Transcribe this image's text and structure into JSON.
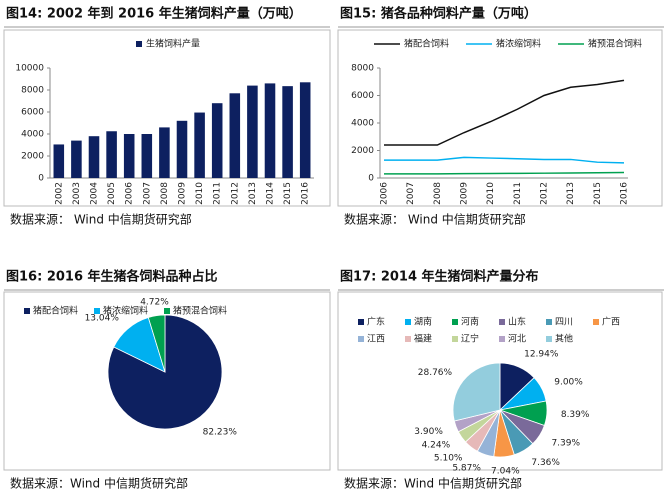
{
  "chart_data": [
    {
      "type": "bar",
      "title": "图14:  2002 年到 2016 年生猪饲料产量（万吨）",
      "source": "数据来源：  Wind  中信期货研究部",
      "categories": [
        "2002",
        "2003",
        "2004",
        "2005",
        "2006",
        "2007",
        "2008",
        "2009",
        "2010",
        "2011",
        "2012",
        "2013",
        "2014",
        "2015",
        "2016"
      ],
      "series": [
        {
          "name": "生猪饲料产量",
          "color": "#0d2060",
          "values": [
            3050,
            3400,
            3800,
            4250,
            4000,
            4000,
            4600,
            5200,
            5950,
            6800,
            7700,
            8400,
            8600,
            8350,
            8700
          ]
        }
      ],
      "ylim": [
        0,
        10000
      ],
      "yticks": [
        0,
        2000,
        4000,
        6000,
        8000,
        10000
      ]
    },
    {
      "type": "line",
      "title": "图15:   猪各品种饲料产量（万吨）",
      "source": "数据来源：  Wind  中信期货研究部",
      "categories": [
        "2006",
        "2007",
        "2008",
        "2009",
        "2010",
        "2011",
        "2012",
        "2013",
        "2015",
        "2016"
      ],
      "series": [
        {
          "name": "猪配合饲料",
          "color": "#111111",
          "values": [
            2400,
            2400,
            2400,
            3300,
            4100,
            5000,
            6000,
            6600,
            6800,
            7100
          ]
        },
        {
          "name": "猪浓缩饲料",
          "color": "#00b0f0",
          "values": [
            1300,
            1300,
            1300,
            1500,
            1450,
            1400,
            1350,
            1350,
            1150,
            1100
          ]
        },
        {
          "name": "猪预混合饲料",
          "color": "#00a050",
          "values": [
            300,
            300,
            300,
            320,
            330,
            340,
            350,
            360,
            380,
            400
          ]
        }
      ],
      "ylim": [
        0,
        8000
      ],
      "yticks": [
        0,
        2000,
        4000,
        6000,
        8000
      ]
    },
    {
      "type": "pie",
      "title": "图16:   2016 年生猪各饲料品种占比",
      "source": "数据来源：Wind 中信期货研究部",
      "categories": [
        "猪配合饲料",
        "猪浓缩饲料",
        "猪预混合饲料"
      ],
      "values": [
        82.23,
        13.04,
        4.72
      ],
      "value_labels": [
        "82.23%",
        "13.04%",
        "4.72%"
      ],
      "colors": [
        "#0d2060",
        "#00b0f0",
        "#00a050"
      ]
    },
    {
      "type": "pie",
      "title": "图17:   2014 年生猪饲料产量分布",
      "source": "数据来源：Wind 中信期货研究部",
      "categories": [
        "广东",
        "湖南",
        "河南",
        "山东",
        "四川",
        "广西",
        "江西",
        "福建",
        "辽宁",
        "河北",
        "其他"
      ],
      "values": [
        12.94,
        9.0,
        8.39,
        7.39,
        7.36,
        7.04,
        5.87,
        5.1,
        4.24,
        3.9,
        28.76
      ],
      "value_labels": [
        "12.94%",
        "9.00%",
        "8.39%",
        "7.39%",
        "7.36%",
        "7.04%",
        "5.87%",
        "5.10%",
        "4.24%",
        "3.90%",
        "28.76%"
      ],
      "colors": [
        "#0d2060",
        "#00b0f0",
        "#00a050",
        "#7a6a9a",
        "#4a9ab5",
        "#f79646",
        "#95b3d7",
        "#e6b9b8",
        "#c3d69b",
        "#b3a2c7",
        "#93cddd"
      ]
    }
  ]
}
